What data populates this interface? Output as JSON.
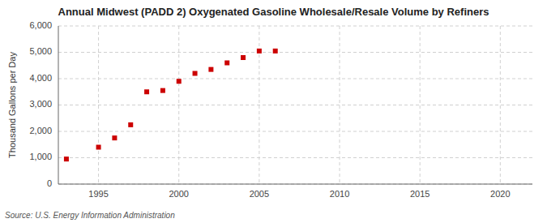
{
  "chart_data": {
    "type": "scatter",
    "title": "Annual Midwest (PADD 2) Oxygenated Gasoline Wholesale/Resale Volume by Refiners",
    "ylabel": "Thousand Gallons per Day",
    "annotation": "Source: U.S. Energy Information Administration",
    "x": [
      1993,
      1995,
      1996,
      1997,
      1998,
      1999,
      2000,
      2001,
      2002,
      2003,
      2004,
      2005,
      2006
    ],
    "values": [
      950,
      1400,
      1750,
      2250,
      3500,
      3550,
      3900,
      4200,
      4350,
      4600,
      4800,
      5050,
      5050
    ],
    "color": "#cc0000",
    "marker": "square",
    "xlim": [
      1992.5,
      2022
    ],
    "ylim": [
      0,
      6000
    ],
    "xticks": [
      1995,
      2000,
      2005,
      2010,
      2015,
      2020
    ],
    "yticks": [
      0,
      {
        "value": 1000,
        "label": "1,000"
      },
      {
        "value": 2000,
        "label": "2,000"
      },
      {
        "value": 3000,
        "label": "3,000"
      },
      {
        "value": 4000,
        "label": "4,000"
      },
      {
        "value": 5000,
        "label": "5,000"
      },
      {
        "value": 6000,
        "label": "6,000"
      }
    ],
    "grid": true
  }
}
